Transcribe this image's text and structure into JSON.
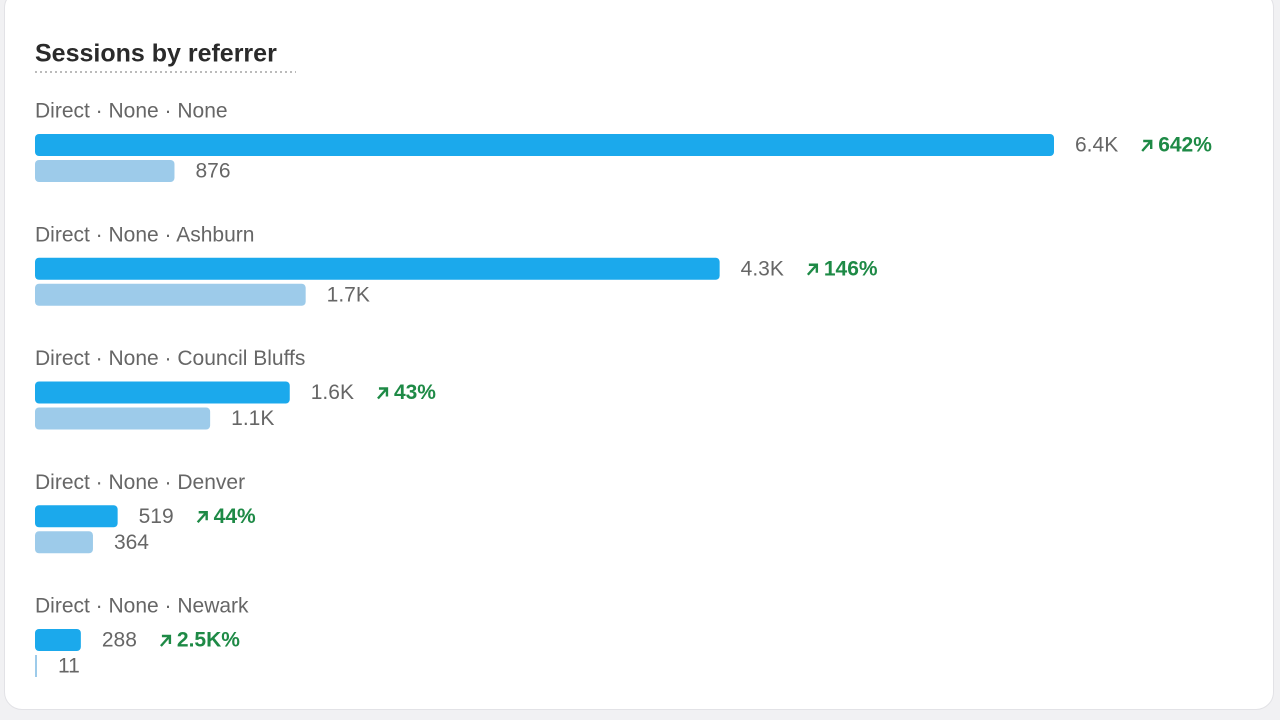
{
  "chart_data": {
    "type": "bar",
    "orientation": "horizontal",
    "title": "Sessions by referrer",
    "categories": [
      "Direct · None · None",
      "Direct · None · Ashburn",
      "Direct · None · Council Bluffs",
      "Direct · None · Denver",
      "Direct · None · Newark"
    ],
    "series": [
      {
        "color": "#1ba9ec",
        "values": [
          6400,
          4300,
          1600,
          519,
          288
        ],
        "value_labels": [
          "6.4K",
          "4.3K",
          "1.6K",
          "519",
          "288"
        ]
      },
      {
        "color": "#9dcbea",
        "values": [
          876,
          1700,
          1100,
          364,
          11
        ],
        "value_labels": [
          "876",
          "1.7K",
          "1.1K",
          "364",
          "11"
        ]
      }
    ],
    "changes": {
      "color": "#1e8a46",
      "values": [
        642,
        146,
        43,
        44,
        2500
      ],
      "value_labels": [
        "642%",
        "146%",
        "43%",
        "44%",
        "2.5K%"
      ]
    }
  }
}
